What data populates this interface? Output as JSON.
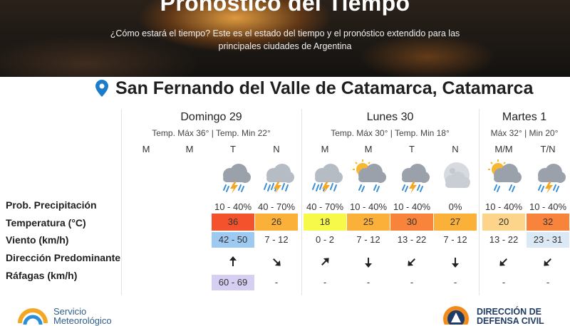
{
  "hero": {
    "title": "Pronóstico del Tiempo",
    "subtitle": "¿Cómo estará el tiempo? Este es el estado del tiempo y el pronóstico extendido para las principales ciudades de Argentina"
  },
  "city": {
    "name": "San Fernando del Valle de Catamarca, Catamarca",
    "icon": "location-pin-icon"
  },
  "days": [
    {
      "name": "Domingo 29",
      "temps": "Temp. Máx 36° | Temp. Min 22°"
    },
    {
      "name": "Lunes 30",
      "temps": "Temp. Máx 30° | Temp. Min 18°"
    },
    {
      "name": "Martes 1",
      "temps": "Máx 32° | Min 20°"
    }
  ],
  "row_labels": {
    "precip": "Prob. Precipitación",
    "temp": "Temperatura (°C)",
    "wind": "Viento (km/h)",
    "direction": "Dirección Predominante",
    "gusts": "Ráfagas (km/h)"
  },
  "periods": [
    {
      "label": "M",
      "icon": "",
      "precip": "",
      "temp": "",
      "wind": "",
      "direction": "",
      "gusts": ""
    },
    {
      "label": "M",
      "icon": "",
      "precip": "",
      "temp": "",
      "wind": "",
      "direction": "",
      "gusts": ""
    },
    {
      "label": "T",
      "icon": "storm-cloud-icon",
      "precip": "10 - 40%",
      "temp": "36",
      "temp_color": "#f4522d",
      "wind": "42 - 50",
      "wind_color": "#9ec9f1",
      "direction": "arrow-up-icon",
      "gusts": "60 - 69",
      "gusts_color": "#d6cff2"
    },
    {
      "label": "N",
      "icon": "storm-rain-icon",
      "precip": "40 - 70%",
      "temp": "26",
      "temp_color": "#fbb039",
      "wind": "7 - 12",
      "direction": "arrow-down-right-icon",
      "gusts": "-"
    },
    {
      "label": "M",
      "icon": "storm-rain-icon",
      "precip": "40 - 70%",
      "temp": "18",
      "temp_color": "#f6f94a",
      "wind": "0 - 2",
      "direction": "arrow-up-right-icon",
      "gusts": "-"
    },
    {
      "label": "M",
      "icon": "sun-cloud-rain-icon",
      "precip": "10 - 40%",
      "temp": "25",
      "temp_color": "#fbb039",
      "wind": "7 - 12",
      "direction": "arrow-down-icon",
      "gusts": "-"
    },
    {
      "label": "T",
      "icon": "storm-cloud-icon",
      "precip": "10 - 40%",
      "temp": "30",
      "temp_color": "#f8833a",
      "wind": "13 - 22",
      "direction": "arrow-down-left-icon",
      "gusts": "-"
    },
    {
      "label": "N",
      "icon": "moon-cloud-icon",
      "precip": "0%",
      "temp": "27",
      "temp_color": "#fbb039",
      "wind": "7 - 12",
      "direction": "arrow-down-icon",
      "gusts": "-"
    },
    {
      "label": "M/M",
      "icon": "sun-cloud-rain-icon",
      "precip": "10 - 40%",
      "temp": "20",
      "temp_color": "#fdd58a",
      "wind": "13 - 22",
      "direction": "arrow-down-left-icon",
      "gusts": "-"
    },
    {
      "label": "T/N",
      "icon": "storm-cloud-icon",
      "precip": "10 - 40%",
      "temp": "32",
      "temp_color": "#f8833a",
      "wind": "23 - 31",
      "wind_color": "#dbe8f6",
      "direction": "arrow-down-left-icon",
      "gusts": "-"
    }
  ],
  "footer": {
    "smn_line1": "Servicio",
    "smn_line2": "Meteorológico",
    "dc_line1": "DIRECCIÓN DE",
    "dc_line2": "DEFENSA CIVIL"
  }
}
